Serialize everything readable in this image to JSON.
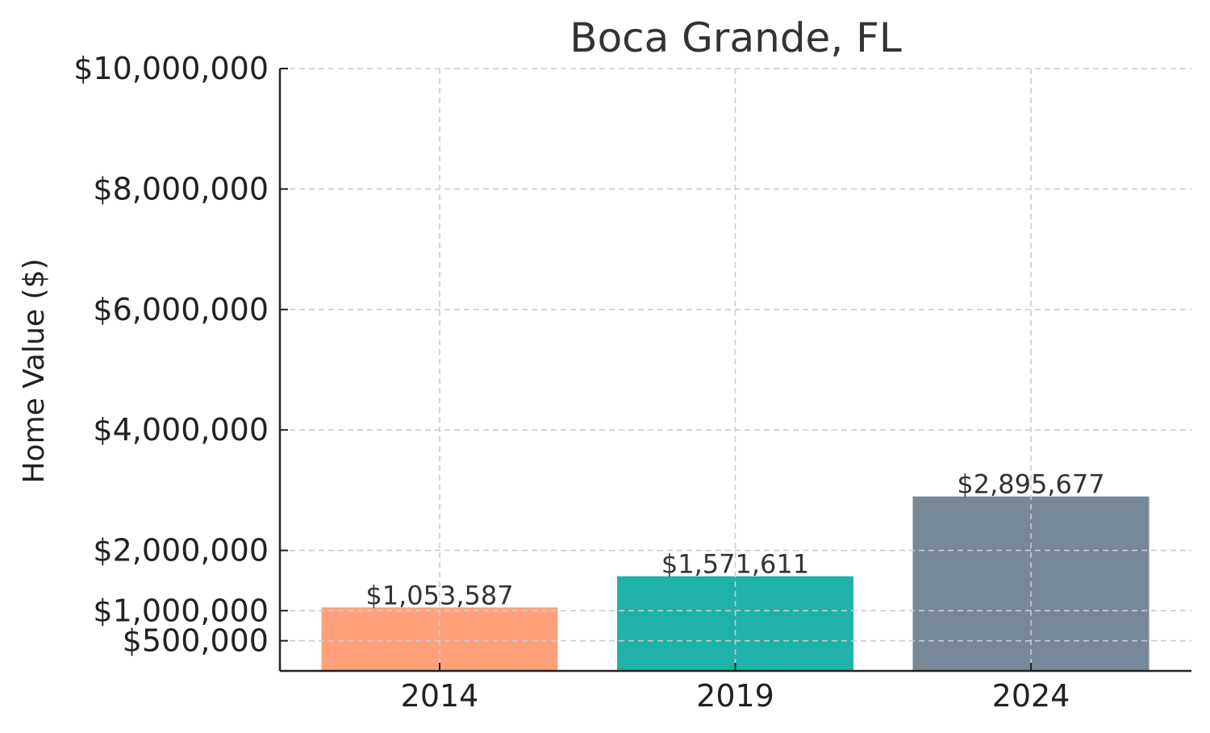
{
  "chart_data": {
    "type": "bar",
    "title": "Boca Grande, FL",
    "xlabel": "",
    "ylabel": "Home Value ($)",
    "categories": [
      "2014",
      "2019",
      "2024"
    ],
    "values": [
      1053587,
      1571611,
      2895677
    ],
    "value_labels": [
      "$1,053,587",
      "$1,571,611",
      "$2,895,677"
    ],
    "colors": [
      "#FFA07A",
      "#20B2AA",
      "#778899"
    ],
    "ylim": [
      0,
      10000000
    ],
    "yticks": [
      500000,
      1000000,
      2000000,
      4000000,
      6000000,
      8000000,
      10000000
    ],
    "ytick_labels": [
      "$500,000",
      "$1,000,000",
      "$2,000,000",
      "$4,000,000",
      "$6,000,000",
      "$8,000,000",
      "$10,000,000"
    ],
    "grid": true
  }
}
